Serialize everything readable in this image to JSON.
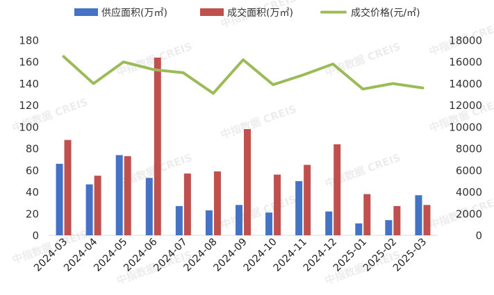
{
  "colors": {
    "supply": "#4472C4",
    "deal": "#C0504D",
    "price": "#9BBB59",
    "axis": "#d9d9d9",
    "text": "#333333"
  },
  "legend": {
    "supply": "供应面积(万㎡)",
    "deal": "成交面积(万㎡)",
    "price": "成交价格(元/㎡)"
  },
  "watermark": "中指数据 CREIS",
  "chart_data": {
    "type": "bar",
    "categories": [
      "2024-03",
      "2024-04",
      "2024-05",
      "2024-06",
      "2024-07",
      "2024-08",
      "2024-09",
      "2024-10",
      "2024-11",
      "2024-12",
      "2025-01",
      "2025-02",
      "2025-03"
    ],
    "series": [
      {
        "name": "供应面积(万㎡)",
        "type": "bar",
        "axis": "left",
        "values": [
          66,
          47,
          74,
          53,
          27,
          23,
          28,
          21,
          50,
          22,
          11,
          14,
          37
        ]
      },
      {
        "name": "成交面积(万㎡)",
        "type": "bar",
        "axis": "left",
        "values": [
          88,
          55,
          73,
          164,
          57,
          59,
          98,
          56,
          65,
          84,
          38,
          27,
          28
        ]
      },
      {
        "name": "成交价格(元/㎡)",
        "type": "line",
        "axis": "right",
        "values": [
          16500,
          14000,
          16000,
          15300,
          15000,
          13100,
          16200,
          13900,
          14800,
          15800,
          13500,
          14000,
          13600
        ]
      }
    ],
    "left_axis": {
      "min": 0,
      "max": 180,
      "step": 20,
      "ticks": [
        "0",
        "20",
        "40",
        "60",
        "80",
        "100",
        "120",
        "140",
        "160",
        "180"
      ]
    },
    "right_axis": {
      "min": 0,
      "max": 18000,
      "step": 2000,
      "ticks": [
        "0",
        "2000",
        "4000",
        "6000",
        "8000",
        "10000",
        "12000",
        "14000",
        "16000",
        "18000"
      ]
    },
    "legend_position": "top",
    "grid": false
  }
}
